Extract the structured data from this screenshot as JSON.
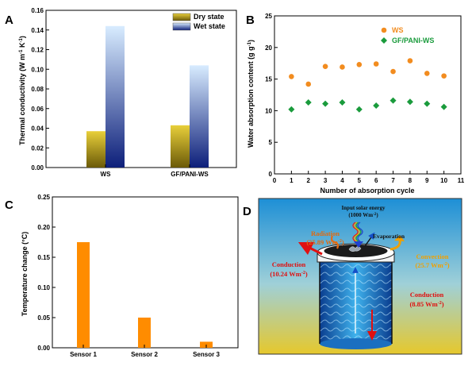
{
  "panels": {
    "A": {
      "letter": "A"
    },
    "B": {
      "letter": "B"
    },
    "C": {
      "letter": "C"
    },
    "D": {
      "letter": "D"
    }
  },
  "chart_data": [
    {
      "id": "A",
      "type": "bar",
      "ylabel_main": "Thermal conductivity (W m",
      "ylabel_sup1": "-1",
      "ylabel_mid": " K",
      "ylabel_sup2": "-1",
      "ylabel_end": ")",
      "categories": [
        "WS",
        "GF/PANI-WS"
      ],
      "series": [
        {
          "name": "Dry state",
          "values": [
            0.037,
            0.043
          ]
        },
        {
          "name": "Wet state",
          "values": [
            0.144,
            0.104
          ]
        }
      ],
      "ylim": [
        0,
        0.16
      ],
      "yticks": [
        "0.00",
        "0.02",
        "0.04",
        "0.06",
        "0.08",
        "0.10",
        "0.12",
        "0.14",
        "0.16"
      ],
      "colors": {
        "dry_top": "#e8cf3a",
        "dry_bottom": "#6b5a08",
        "wet_top": "#d8ecff",
        "wet_bottom": "#0d1f7a"
      }
    },
    {
      "id": "B",
      "type": "scatter",
      "xlabel": "Number of absorption cycle",
      "ylabel_main": "Water absorption content (g g",
      "ylabel_sup": "-1",
      "ylabel_end": ")",
      "x": [
        1,
        2,
        3,
        4,
        5,
        6,
        7,
        8,
        9,
        10
      ],
      "series": [
        {
          "name": "WS",
          "values": [
            15.4,
            14.2,
            17.0,
            16.9,
            17.3,
            17.4,
            16.2,
            17.9,
            15.9,
            15.5
          ],
          "color": "#f28c1f"
        },
        {
          "name": "GF/PANI-WS",
          "values": [
            10.2,
            11.3,
            11.1,
            11.3,
            10.2,
            10.8,
            11.6,
            11.4,
            11.1,
            10.6
          ],
          "color": "#1a9b3c"
        }
      ],
      "xlim": [
        0,
        11
      ],
      "ylim": [
        0,
        25
      ],
      "xticks": [
        "0",
        "1",
        "2",
        "3",
        "4",
        "5",
        "6",
        "7",
        "8",
        "9",
        "10",
        "11"
      ],
      "yticks": [
        "0",
        "5",
        "10",
        "15",
        "20",
        "25"
      ]
    },
    {
      "id": "C",
      "type": "bar",
      "ylabel": "Temperature change (°C)",
      "categories": [
        "Sensor 1",
        "Sensor 2",
        "Sensor 3"
      ],
      "values": [
        0.175,
        0.05,
        0.01
      ],
      "ylim": [
        0,
        0.25
      ],
      "yticks": [
        "0.00",
        "0.05",
        "0.10",
        "0.15",
        "0.20",
        "0.25"
      ],
      "color": "#ff8c00"
    }
  ],
  "diagram": {
    "input_line1": "Input solar energy",
    "input_line2": "(1000 Wm",
    "input_sup": "-2",
    "input_end": ")",
    "evaporation": "Evaporation",
    "radiation_line1": "Radiation",
    "radiation_line2": "(25.89 Wm",
    "radiation_sup": "-2",
    "radiation_end": ")",
    "conduction_left_line1": "Conduction",
    "conduction_left_line2": "(10.24 Wm",
    "conduction_left_sup": "-2",
    "conduction_left_end": ")",
    "convection_line1": "Convection",
    "convection_line2": "(25.7 Wm",
    "convection_sup": "-2",
    "convection_end": ")",
    "conduction_right_line1": "Conduction",
    "conduction_right_line2": "(8.85 Wm",
    "conduction_right_sup": "-2",
    "conduction_right_end": ")"
  }
}
